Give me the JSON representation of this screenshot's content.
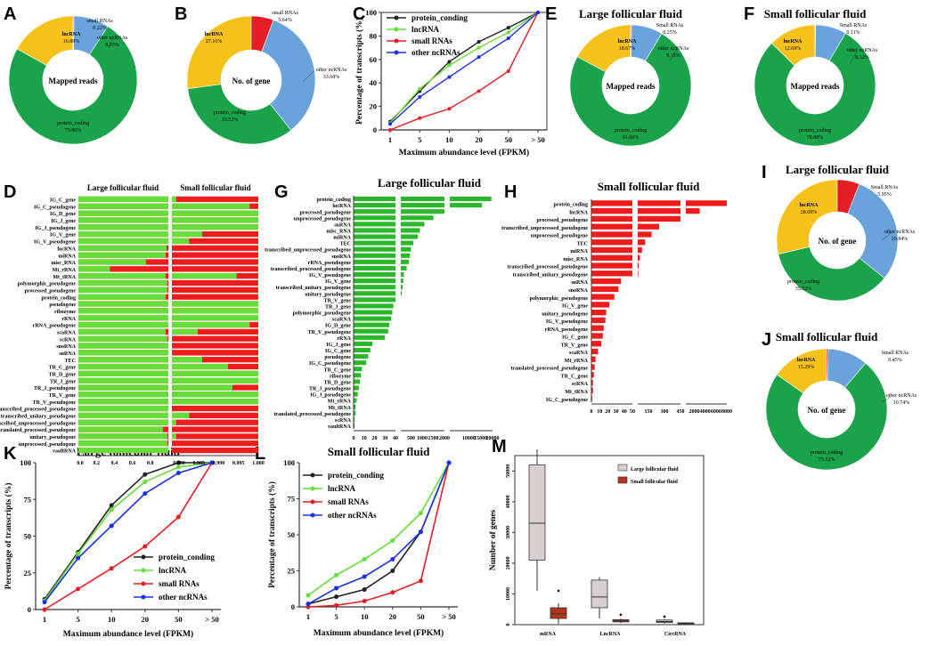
{
  "colors": {
    "green": "#1aa34a",
    "yellow": "#f6c11b",
    "red": "#e41e26",
    "blue": "#6aa3dc",
    "lime": "#66dd3a",
    "black": "#222222",
    "line_blue": "#1c2ee6",
    "box_grey": "#d8cfcf",
    "box_red": "#b3361b",
    "bar_green": "#2ab82a",
    "bar_red": "#ee1c1c"
  },
  "panels": {
    "A": {
      "letter": "A"
    },
    "B": {
      "letter": "B"
    },
    "C": {
      "letter": "C"
    },
    "D": {
      "letter": "D"
    },
    "E": {
      "letter": "E"
    },
    "F": {
      "letter": "F"
    },
    "G": {
      "letter": "G"
    },
    "H": {
      "letter": "H"
    },
    "I": {
      "letter": "I"
    },
    "J": {
      "letter": "J"
    },
    "K": {
      "letter": "K"
    },
    "L": {
      "letter": "L"
    },
    "M": {
      "letter": "M"
    }
  },
  "chart_data": [
    {
      "id": "A",
      "type": "pie",
      "title": "",
      "center_label": "Mapped reads",
      "slices": [
        {
          "name": "protein_coding",
          "value": 73.96,
          "label": "73.96%",
          "color": "green"
        },
        {
          "name": "lncRNA",
          "value": 16.89,
          "label": "16.89%",
          "color": "yellow"
        },
        {
          "name": "small RNAs",
          "value": 0.22,
          "label": "0.22%",
          "color": "red"
        },
        {
          "name": "other ncRNAs",
          "value": 8.93,
          "label": "8.93%",
          "color": "blue"
        }
      ]
    },
    {
      "id": "B",
      "type": "pie",
      "title": "",
      "center_label": "No. of gene",
      "slices": [
        {
          "name": "protein_coding",
          "value": 33.52,
          "label": "33.52%",
          "color": "green"
        },
        {
          "name": "lncRNA",
          "value": 27.16,
          "label": "27.16%",
          "color": "yellow"
        },
        {
          "name": "small RNAs",
          "value": 5.64,
          "label": "5.64%",
          "color": "red"
        },
        {
          "name": "other ncRNAs",
          "value": 33.68,
          "label": "33.68%",
          "color": "blue"
        }
      ]
    },
    {
      "id": "E",
      "type": "pie",
      "title": "Large follicular fluid",
      "center_label": "Mapped reads",
      "slices": [
        {
          "name": "protein_coding",
          "value": 81.06,
          "label": "81.06%",
          "color": "green"
        },
        {
          "name": "lncRNA",
          "value": 18.67,
          "label": "18.67%",
          "color": "yellow"
        },
        {
          "name": "Small RNAs",
          "value": 0.25,
          "label": "0.25%",
          "color": "red"
        },
        {
          "name": "other ncRNAs",
          "value": 9.15,
          "label": "9.15%",
          "color": "blue"
        }
      ]
    },
    {
      "id": "F",
      "type": "pie",
      "title": "Small follicular fluid",
      "center_label": "Mapped reads",
      "slices": [
        {
          "name": "protein_coding",
          "value": 78.88,
          "label": "78.88%",
          "color": "green"
        },
        {
          "name": "lncRNA",
          "value": 12.69,
          "label": "12.69%",
          "color": "yellow"
        },
        {
          "name": "Small RNAs",
          "value": 0.11,
          "label": "0.11%",
          "color": "red"
        },
        {
          "name": "other ncRNAs",
          "value": 8.32,
          "label": "8.32%",
          "color": "blue"
        }
      ]
    },
    {
      "id": "I",
      "type": "pie",
      "title": "Large follicular fluid",
      "center_label": "No. of gene",
      "slices": [
        {
          "name": "protein_coding",
          "value": 35.52,
          "label": "35.52%",
          "color": "green"
        },
        {
          "name": "lncRNA",
          "value": 28.69,
          "label": "28.69%",
          "color": "yellow"
        },
        {
          "name": "Small RNAs",
          "value": 5.95,
          "label": "5.95%",
          "color": "red"
        },
        {
          "name": "other ncRNAs",
          "value": 29.84,
          "label": "29.84%",
          "color": "blue"
        }
      ]
    },
    {
      "id": "J",
      "type": "pie",
      "title": "Small follicular fluid",
      "center_label": "No. of gene",
      "slices": [
        {
          "name": "protein_coding",
          "value": 73.52,
          "label": "73.52%",
          "color": "green"
        },
        {
          "name": "lncRNA",
          "value": 15.29,
          "label": "15.29%",
          "color": "yellow"
        },
        {
          "name": "Small RNAs",
          "value": 0.45,
          "label": "0.45%",
          "color": "red"
        },
        {
          "name": "other ncRNAs",
          "value": 10.74,
          "label": "10.74%",
          "color": "blue"
        }
      ]
    },
    {
      "id": "C",
      "type": "line",
      "title": "",
      "xlabel": "Maximum abundance level (FPKM)",
      "ylabel": "Percentage of transcripts (%)",
      "categories": [
        "1",
        "5",
        "10",
        "20",
        "50",
        "> 50"
      ],
      "ylim": [
        0,
        100
      ],
      "yticks": [
        0,
        20,
        40,
        60,
        80,
        100
      ],
      "legend_position": "top-left",
      "series": [
        {
          "name": "protein_conding",
          "color": "black",
          "values": [
            7,
            33,
            58,
            75,
            87,
            100
          ]
        },
        {
          "name": "lncRNA",
          "color": "lime",
          "values": [
            6,
            35,
            55,
            70,
            83,
            100
          ]
        },
        {
          "name": "small RNAs",
          "color": "red",
          "values": [
            0,
            10,
            18,
            33,
            50,
            100
          ]
        },
        {
          "name": "other ncRNAs",
          "color": "line_blue",
          "values": [
            5,
            28,
            45,
            62,
            78,
            100
          ]
        }
      ]
    },
    {
      "id": "K",
      "type": "line",
      "title": "Large follicular fluid",
      "xlabel": "Maximum abundance level (FPKM)",
      "ylabel": "Percentage of transcripts (%)",
      "categories": [
        "1",
        "5",
        "10",
        "20",
        "50",
        "> 50"
      ],
      "ylim": [
        0,
        100
      ],
      "yticks": [
        0,
        25,
        50,
        75,
        100
      ],
      "legend_position": "bottom-right",
      "series": [
        {
          "name": "protein_conding",
          "color": "black",
          "values": [
            7,
            39,
            71,
            92,
            100,
            100
          ]
        },
        {
          "name": "lncRNA",
          "color": "lime",
          "values": [
            6,
            38,
            68,
            87,
            97,
            100
          ]
        },
        {
          "name": "small RNAs",
          "color": "red",
          "values": [
            0,
            14,
            28,
            43,
            63,
            100
          ]
        },
        {
          "name": "other ncRNAs",
          "color": "line_blue",
          "values": [
            5,
            35,
            57,
            79,
            93,
            100
          ]
        }
      ]
    },
    {
      "id": "L",
      "type": "line",
      "title": "Small follicular fluid",
      "xlabel": "Maximum abundance level (FPKM)",
      "ylabel": "Percentage of transcripts (%)",
      "categories": [
        "1",
        "5",
        "10",
        "20",
        "50",
        "> 50"
      ],
      "ylim": [
        0,
        100
      ],
      "yticks": [
        0,
        25,
        50,
        75,
        100
      ],
      "legend_position": "top-left",
      "series": [
        {
          "name": "protein_conding",
          "color": "black",
          "values": [
            2,
            7,
            12,
            25,
            52,
            100
          ]
        },
        {
          "name": "lncRNA",
          "color": "lime",
          "values": [
            8,
            22,
            33,
            46,
            65,
            100
          ]
        },
        {
          "name": "small RNAs",
          "color": "red",
          "values": [
            0,
            1,
            4,
            10,
            18,
            100
          ]
        },
        {
          "name": "other ncRNAs",
          "color": "line_blue",
          "values": [
            2,
            13,
            21,
            33,
            52,
            100
          ]
        }
      ]
    },
    {
      "id": "M",
      "type": "box",
      "title": "",
      "ylabel": "Number of genes",
      "ylim": [
        0,
        55000
      ],
      "yticks": [
        0,
        10000,
        20000,
        30000,
        40000,
        50000
      ],
      "categories": [
        "mRNA",
        "LncRNA",
        "CircRNA"
      ],
      "series": [
        {
          "name": "Large follicular fluid",
          "color": "box_grey",
          "boxes": [
            {
              "min": 11000,
              "q1": 21000,
              "median": 33000,
              "q3": 52000,
              "max": 57000,
              "outliers": []
            },
            {
              "min": 2000,
              "q1": 5500,
              "median": 9000,
              "q3": 14500,
              "max": 15500,
              "outliers": []
            },
            {
              "min": 300,
              "q1": 700,
              "median": 1000,
              "q3": 1500,
              "max": 1800,
              "outliers": [
                2600
              ]
            }
          ]
        },
        {
          "name": "Small follicular fluid",
          "color": "box_red",
          "boxes": [
            {
              "min": 300,
              "q1": 2000,
              "median": 3500,
              "q3": 5500,
              "max": 7000,
              "outliers": [
                11000
              ]
            },
            {
              "min": 500,
              "q1": 900,
              "median": 1200,
              "q3": 1600,
              "max": 2000,
              "outliers": [
                3200
              ]
            },
            {
              "min": 100,
              "q1": 300,
              "median": 450,
              "q3": 600,
              "max": 800,
              "outliers": []
            }
          ]
        }
      ]
    },
    {
      "id": "D",
      "type": "bar",
      "orientation": "horizontal-stacked",
      "xlabel": "",
      "xticks_left": [
        "0.0",
        "0.2",
        "0.4",
        "0.6",
        "0.8"
      ],
      "xticks_right": [
        "0.980",
        "0.985",
        "0.990",
        "0.995",
        "1.000"
      ],
      "subtitles": [
        "Large follicular fluid",
        "Small follicular fluid"
      ],
      "categories": [
        "IG_C_gene",
        "IG_C_pseudogene",
        "IG_D_gene",
        "IG_J_gene",
        "IG_J_pseudogene",
        "IG_V_gene",
        "IG_V_pseudogene",
        "lncRNA",
        "miRNA",
        "misc_RNA",
        "Mt_rRNA",
        "Mt_tRNA",
        "polymorphic_pseudogene",
        "processed_pseudogene",
        "protein_coding",
        "pseudogene",
        "ribozyme",
        "rRNA",
        "rRNA_pseudogene",
        "scaRNA",
        "scRNA",
        "snoRNA",
        "snRNA",
        "TEC",
        "TR_C_gene",
        "TR_D_gene",
        "TR_J_gene",
        "TR_J_pseudogene",
        "TR_V_gene",
        "TR_V_pseudogene",
        "transcribed_processed_pseudogene",
        "transcribed_unitary_pseudogene",
        "transcribed_unprocessed_pseudogene",
        "translated_processed_pseudogene",
        "unitary_pseudogene",
        "unprocessed_pseudogene",
        "vaultRNA"
      ],
      "large_green": [
        1,
        1,
        1,
        1,
        1,
        1,
        1,
        0.98,
        0.97,
        0.75,
        0.35,
        0.97,
        0.99,
        0.99,
        0.97,
        1,
        1,
        1,
        1,
        0.97,
        0.99,
        1,
        1,
        1,
        1,
        1,
        1,
        1,
        1,
        1,
        1,
        1,
        1,
        0.94,
        0.99,
        0.99,
        1
      ],
      "small_green": [
        0.981,
        0.998,
        1,
        1,
        1,
        0.987,
        0.984,
        0.98,
        0.98,
        0.98,
        0.98,
        0.995,
        0.98,
        0.98,
        0.98,
        1,
        1,
        1,
        0.998,
        0.986,
        0.98,
        0.98,
        0.98,
        0.987,
        0.993,
        1,
        1,
        0.994,
        1,
        1,
        0.98,
        0.984,
        0.981,
        0.98,
        0.981,
        0.98,
        0.98
      ]
    },
    {
      "id": "G",
      "type": "bar",
      "orientation": "horizontal",
      "title": "Large follicular fluid",
      "xticks": [
        "0",
        "10",
        "20",
        "30",
        "40",
        "500",
        "1000",
        "1500",
        "2000",
        "10000",
        "15000",
        "20000"
      ],
      "categories": [
        "protein_coding",
        "lncRNA",
        "processed_pseudogene",
        "unprocessed_pseudogene",
        "snRNA",
        "misc_RNA",
        "miRNA",
        "TEC",
        "transcribed_unprocessed_pseudogene",
        "snoRNA",
        "rRNA_pseudogene",
        "transcribed_processed_pseudogene",
        "IG_V_pseudogene",
        "IG_V_gene",
        "transcribed_unitary_pseudogene",
        "unitary_pseudogene",
        "TR_V_gene",
        "TR_J_gene",
        "polymorphic_pseudogene",
        "scaRNA",
        "IG_D_gene",
        "TR_V_pseudogene",
        "rRNA",
        "IG_J_gene",
        "IG_C_gene",
        "pseudogene",
        "IG_C_pseudogene",
        "TR_C_gene",
        "ribozyme",
        "TR_D_gene",
        "TR_J_pseudogene",
        "IG_J_pseudogene",
        "Mt_rRNA",
        "Mt_tRNA",
        "translated_processed_pseudogene",
        "scRNA",
        "vaultRNA"
      ],
      "values": [
        19500,
        15500,
        2000,
        1500,
        1100,
        900,
        800,
        600,
        500,
        450,
        400,
        300,
        180,
        150,
        120,
        80,
        40,
        38,
        37,
        36,
        34,
        33,
        30,
        18,
        16,
        14,
        12,
        8,
        7,
        6,
        5,
        4,
        3,
        2,
        2,
        1,
        1
      ]
    },
    {
      "id": "H",
      "type": "bar",
      "orientation": "horizontal",
      "title": "Small follicular fluid",
      "xticks": [
        "0",
        "10",
        "20",
        "30",
        "40",
        "50",
        "150",
        "300",
        "450",
        "2000",
        "4000",
        "6000",
        "8000"
      ],
      "categories": [
        "protein_coding",
        "lncRNA",
        "processed_pseudogene",
        "transcribed_unprocessed_pseudogene",
        "unprocessed_pseudogene",
        "TEC",
        "miRNA",
        "misc_RNA",
        "transcribed_processed_pseudogene",
        "transcribed_unitary_pseudogene",
        "snRNA",
        "snoRNA",
        "polymorphic_pseudogene",
        "IG_V_gene",
        "unitary_pseudogene",
        "IG_V_pseudogene",
        "rRNA_pseudogene",
        "IG_C_gene",
        "TR_V_gene",
        "scaRNA",
        "Mt_rRNA",
        "translated_processed_pseudogene",
        "TR_C_gene",
        "scRNA",
        "Mt_tRNA",
        "IG_C_pseudogene"
      ],
      "values": [
        8500,
        3000,
        450,
        250,
        180,
        120,
        90,
        70,
        60,
        55,
        36,
        33,
        28,
        22,
        18,
        17,
        15,
        14,
        12,
        8,
        5,
        4,
        3,
        2,
        2,
        1
      ]
    }
  ],
  "text": {
    "mapped_reads": "Mapped reads",
    "no_of_gene": "No. of gene",
    "large": "Large follicular fluid",
    "small": "Small follicular fluid",
    "legend_large": "Large follicular fluid",
    "legend_small": "Small follicular fluid"
  }
}
